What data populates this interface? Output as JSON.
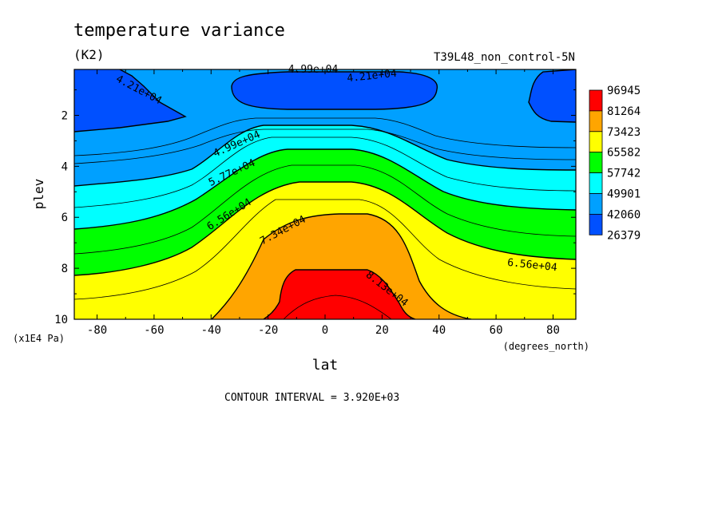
{
  "chart_data": {
    "type": "heatmap",
    "title": "temperature variance",
    "units": "(K2)",
    "dataset_label": "T39L48_non_control-5N",
    "xlabel": "lat",
    "x_units": "(degrees_north)",
    "ylabel": "plev",
    "y_units": "(x1E4 Pa)",
    "xlim": [
      -88,
      88
    ],
    "ylim": [
      0.2,
      10
    ],
    "y_inverted": true,
    "x_ticks": [
      "-80",
      "-60",
      "-40",
      "-20",
      "0",
      "20",
      "40",
      "60",
      "80"
    ],
    "x_tick_values": [
      -80,
      -60,
      -40,
      -20,
      0,
      20,
      40,
      60,
      80
    ],
    "y_ticks": [
      "2",
      "4",
      "6",
      "8",
      "10"
    ],
    "y_tick_values": [
      2,
      4,
      6,
      8,
      10
    ],
    "footer": "CONTOUR INTERVAL = 3.920E+03",
    "colorbar": {
      "labels": [
        "96945",
        "81264",
        "73423",
        "65582",
        "57742",
        "49901",
        "42060",
        "26379"
      ],
      "colors": [
        "#ff0000",
        "#ffa500",
        "#ffff00",
        "#00ff00",
        "#00ffff",
        "#00a0ff",
        "#0050ff"
      ]
    },
    "band_colors": [
      "#0050ff",
      "#00a0ff",
      "#00ffff",
      "#00ff00",
      "#ffff00",
      "#ffa500",
      "#ff0000"
    ],
    "contour_labels": [
      "4.21e+04",
      "4.99e+04",
      "4.21e+04",
      "4.99e+04",
      "5.77e+04",
      "6.56e+04",
      "7.34e+04",
      "8.13e+04",
      "6.56e+04"
    ]
  }
}
